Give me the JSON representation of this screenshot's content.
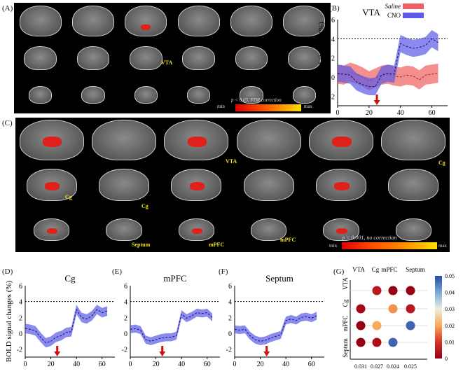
{
  "panels": {
    "a": "(A)",
    "b": "(B)",
    "c": "(C)",
    "d": "(D)",
    "e": "(E)",
    "f": "(F)",
    "g": "(G)"
  },
  "panel_a": {
    "roi_label": "VTA",
    "note": "p < 0.05, FDR correction",
    "cbar_min": "min",
    "cbar_max": "max"
  },
  "panel_c": {
    "labels": [
      "VTA",
      "Cg",
      "Cg",
      "Cg",
      "Septum",
      "mPFC",
      "mPFC"
    ],
    "note": "p < 0.001, no correction",
    "cbar_min": "min",
    "cbar_max": "max"
  },
  "colors": {
    "cno": "#5a5ae6",
    "saline": "#f06060",
    "dot": "#c00000"
  },
  "chart_data": [
    {
      "type": "line",
      "title": "VTA",
      "ylabel": "BOLD signal changes (%)",
      "xlim": [
        0,
        70
      ],
      "ylim": [
        -3,
        6
      ],
      "xticks": [
        0,
        20,
        40,
        60
      ],
      "yticks": [
        -2,
        0,
        2,
        4,
        6
      ],
      "threshold": 4,
      "arrow_x": 25,
      "x": [
        0,
        4,
        8,
        12,
        16,
        20,
        24,
        28,
        32,
        36,
        40,
        44,
        48,
        52,
        56,
        60,
        64
      ],
      "series": [
        {
          "name": "Saline",
          "values": [
            0.3,
            0.2,
            0.5,
            0.3,
            0.0,
            -0.4,
            -0.1,
            0.2,
            0.3,
            0.1,
            0.0,
            0.2,
            0.1,
            -0.3,
            0.2,
            0.3,
            0.4
          ],
          "err": 1.0
        },
        {
          "name": "CNO",
          "values": [
            0.4,
            0.3,
            0.2,
            -0.5,
            -0.8,
            -1.0,
            -1.0,
            0.2,
            0.4,
            0.3,
            3.5,
            3.2,
            3.0,
            3.1,
            3.3,
            4.0,
            3.6
          ],
          "err": 0.9
        }
      ]
    },
    {
      "type": "line",
      "title": "Cg",
      "ylabel": "BOLD signal changes (%)",
      "xlim": [
        0,
        70
      ],
      "ylim": [
        -3,
        6
      ],
      "xticks": [
        0,
        20,
        40,
        60
      ],
      "yticks": [
        -2,
        0,
        2,
        4,
        6
      ],
      "threshold": 4,
      "arrow_x": 25,
      "x": [
        0,
        4,
        8,
        12,
        16,
        20,
        24,
        28,
        32,
        36,
        40,
        44,
        48,
        52,
        56,
        60,
        64
      ],
      "series": [
        {
          "name": "CNO",
          "values": [
            0.6,
            0.5,
            0.3,
            -0.5,
            -1.2,
            -1.0,
            -0.5,
            -0.3,
            0.1,
            0.2,
            3.0,
            2.0,
            1.8,
            2.2,
            3.0,
            2.6,
            2.8
          ],
          "err": 0.6
        }
      ]
    },
    {
      "type": "line",
      "title": "mPFC",
      "xlim": [
        0,
        70
      ],
      "ylim": [
        -3,
        6
      ],
      "xticks": [
        0,
        20,
        40,
        60
      ],
      "yticks": [
        -2,
        0,
        2,
        4,
        6
      ],
      "threshold": 4,
      "arrow_x": 25,
      "x": [
        0,
        4,
        8,
        12,
        16,
        20,
        24,
        28,
        32,
        36,
        40,
        44,
        48,
        52,
        56,
        60,
        64
      ],
      "series": [
        {
          "name": "CNO",
          "values": [
            0.5,
            0.6,
            0.4,
            -0.8,
            -1.0,
            -0.8,
            -0.6,
            -0.5,
            -0.5,
            -0.3,
            2.4,
            1.9,
            2.2,
            2.6,
            2.5,
            2.6,
            2.0
          ],
          "err": 0.5
        }
      ]
    },
    {
      "type": "line",
      "title": "Septum",
      "xlim": [
        0,
        70
      ],
      "ylim": [
        -3,
        6
      ],
      "xticks": [
        0,
        20,
        40,
        60
      ],
      "yticks": [
        -2,
        0,
        2,
        4,
        6
      ],
      "threshold": 4,
      "arrow_x": 25,
      "x": [
        0,
        4,
        8,
        12,
        16,
        20,
        24,
        28,
        32,
        36,
        40,
        44,
        48,
        52,
        56,
        60,
        64
      ],
      "series": [
        {
          "name": "CNO",
          "values": [
            0.5,
            0.4,
            0.5,
            -0.3,
            -0.8,
            -1.0,
            -0.9,
            -0.6,
            -0.4,
            -0.2,
            1.6,
            1.8,
            1.6,
            2.0,
            2.1,
            1.9,
            2.2
          ],
          "err": 0.5
        }
      ]
    },
    {
      "type": "heatmap",
      "rows": [
        "VTA",
        "Cg",
        "mPFC",
        "Septum"
      ],
      "cols": [
        "VTA",
        "Cg",
        "mPFC",
        "Septum"
      ],
      "bottom_labels": [
        "0.031",
        "0.027",
        "0.024",
        "0.025"
      ],
      "values": [
        [
          null,
          0.005,
          0.0,
          0.0
        ],
        [
          0.002,
          null,
          0.018,
          0.005
        ],
        [
          0.0,
          0.02,
          null,
          0.047
        ],
        [
          0.0,
          0.003,
          0.047,
          null
        ]
      ],
      "colorbar": {
        "range": [
          0,
          0.05
        ],
        "ticks": [
          "0",
          "0.01",
          "0.02",
          "0.03",
          "0.04",
          "0.05"
        ]
      }
    }
  ]
}
